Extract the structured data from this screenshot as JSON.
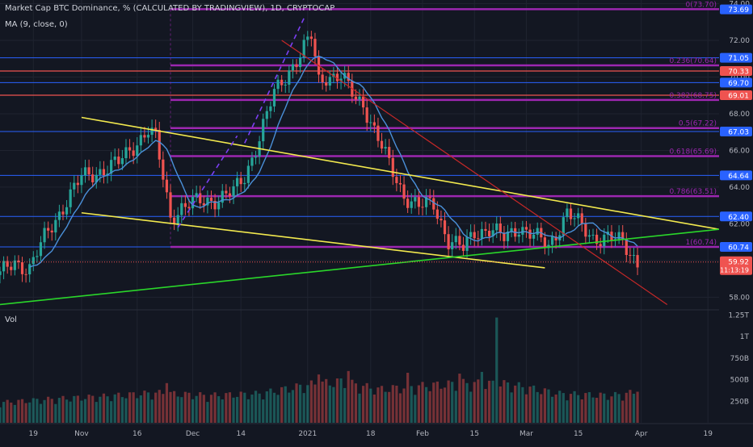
{
  "legend": {
    "title": "Market Cap BTC Dominance, % (CALCULATED BY TRADINGVIEW), 1D, CRYPTOCAP",
    "ma": "MA (9, close, 0)",
    "vol": "Vol"
  },
  "colors": {
    "background": "#131722",
    "grid": "#1f2330",
    "up": "#26a69a",
    "down": "#ef5350",
    "ma": "#4a90d9",
    "fib": "#9c27b0",
    "fib_text": "#9c27b0",
    "yellow": "#f2e94e",
    "green": "#2ad62a",
    "red_trend": "#c62828",
    "blue_level": "#2962ff",
    "price_label": "#ef5350"
  },
  "chart_data": {
    "type": "candlestick",
    "x_axis": {
      "start_date": "2020-10-10",
      "end_date": "2021-04-22",
      "ticks": [
        {
          "date": "2020-10-19",
          "label": "19"
        },
        {
          "date": "2020-11-01",
          "label": "Nov"
        },
        {
          "date": "2020-11-16",
          "label": "16"
        },
        {
          "date": "2020-12-01",
          "label": "Dec"
        },
        {
          "date": "2020-12-14",
          "label": "14"
        },
        {
          "date": "2021-01-01",
          "label": "2021"
        },
        {
          "date": "2021-01-18",
          "label": "18"
        },
        {
          "date": "2021-02-01",
          "label": "Feb"
        },
        {
          "date": "2021-02-15",
          "label": "15"
        },
        {
          "date": "2021-03-01",
          "label": "Mar"
        },
        {
          "date": "2021-03-15",
          "label": "15"
        },
        {
          "date": "2021-04-01",
          "label": "Apr"
        },
        {
          "date": "2021-04-19",
          "label": "19"
        }
      ]
    },
    "y_axis": {
      "range": [
        57.4,
        74.2
      ],
      "ticks": [
        "58.00",
        "60.00",
        "62.00",
        "64.00",
        "66.00",
        "68.00",
        "70.00",
        "72.00",
        "74.00"
      ]
    },
    "volume_axis": {
      "range": [
        0,
        1300000000
      ],
      "ticks": [
        {
          "label": "250B",
          "value": 250000000
        },
        {
          "label": "500B",
          "value": 500000000
        },
        {
          "label": "750B",
          "value": 750000000
        },
        {
          "label": "1T",
          "value": 1000000000
        },
        {
          "label": "1.25T",
          "value": 1250000000
        }
      ]
    },
    "price_anchors": [
      [
        "2020-10-10",
        59.2
      ],
      [
        "2020-10-14",
        59.9
      ],
      [
        "2020-10-18",
        59.6
      ],
      [
        "2020-10-22",
        61.2
      ],
      [
        "2020-10-28",
        63.3
      ],
      [
        "2020-11-01",
        64.5
      ],
      [
        "2020-11-06",
        64.9
      ],
      [
        "2020-11-11",
        65.3
      ],
      [
        "2020-11-16",
        66.5
      ],
      [
        "2020-11-19",
        67.1
      ],
      [
        "2020-11-21",
        66.6
      ],
      [
        "2020-11-25",
        62.4
      ],
      [
        "2020-11-28",
        62.9
      ],
      [
        "2020-12-03",
        63.2
      ],
      [
        "2020-12-08",
        63.4
      ],
      [
        "2020-12-12",
        63.7
      ],
      [
        "2020-12-15",
        64.6
      ],
      [
        "2020-12-19",
        66.7
      ],
      [
        "2020-12-23",
        69.1
      ],
      [
        "2020-12-27",
        70.4
      ],
      [
        "2020-12-30",
        71.2
      ],
      [
        "2021-01-02",
        72.2
      ],
      [
        "2021-01-04",
        69.8
      ],
      [
        "2021-01-06",
        70.1
      ],
      [
        "2021-01-10",
        70.0
      ],
      [
        "2021-01-14",
        68.8
      ],
      [
        "2021-01-16",
        68.6
      ],
      [
        "2021-01-19",
        67.1
      ],
      [
        "2021-01-23",
        65.2
      ],
      [
        "2021-01-27",
        63.6
      ],
      [
        "2021-01-31",
        62.9
      ],
      [
        "2021-02-04",
        63.1
      ],
      [
        "2021-02-08",
        61.1
      ],
      [
        "2021-02-12",
        60.6
      ],
      [
        "2021-02-15",
        61.6
      ],
      [
        "2021-02-19",
        61.7
      ],
      [
        "2021-02-23",
        61.2
      ],
      [
        "2021-02-27",
        61.9
      ],
      [
        "2021-03-03",
        61.3
      ],
      [
        "2021-03-07",
        60.8
      ],
      [
        "2021-03-12",
        62.6
      ],
      [
        "2021-03-15",
        62.0
      ],
      [
        "2021-03-19",
        61.3
      ],
      [
        "2021-03-23",
        61.2
      ],
      [
        "2021-03-27",
        61.0
      ],
      [
        "2021-03-29",
        60.5
      ],
      [
        "2021-03-31",
        59.9
      ]
    ],
    "vol_anchors": [
      [
        "2020-10-10",
        230000000
      ],
      [
        "2020-10-24",
        270000000
      ],
      [
        "2020-11-07",
        300000000
      ],
      [
        "2020-11-21",
        340000000
      ],
      [
        "2020-12-05",
        310000000
      ],
      [
        "2020-12-19",
        330000000
      ],
      [
        "2021-01-01",
        430000000
      ],
      [
        "2021-01-10",
        470000000
      ],
      [
        "2021-01-20",
        380000000
      ],
      [
        "2021-02-01",
        420000000
      ],
      [
        "2021-02-12",
        450000000
      ],
      [
        "2021-02-24",
        440000000
      ],
      [
        "2021-03-10",
        330000000
      ],
      [
        "2021-03-24",
        310000000
      ],
      [
        "2021-03-31",
        350000000
      ]
    ],
    "vol_spikes": [
      {
        "date": "2021-02-21",
        "value": 1220000000
      },
      {
        "date": "2021-02-17",
        "value": 590000000
      },
      {
        "date": "2021-01-12",
        "value": 600000000
      },
      {
        "date": "2021-01-04",
        "value": 560000000
      },
      {
        "date": "2021-01-28",
        "value": 580000000
      },
      {
        "date": "2021-02-11",
        "value": 570000000
      },
      {
        "date": "2020-11-24",
        "value": 460000000
      },
      {
        "date": "2021-03-31",
        "value": 360000000
      }
    ],
    "fib_levels": [
      {
        "value": 73.7,
        "label": "0(73.70)"
      },
      {
        "value": 70.64,
        "label": "0.236(70.64)"
      },
      {
        "value": 68.75,
        "label": "0.382(68.75)"
      },
      {
        "value": 67.22,
        "label": "0.5(67.22)"
      },
      {
        "value": 65.69,
        "label": "0.618(65.69)"
      },
      {
        "value": 63.51,
        "label": "0.786(63.51)"
      },
      {
        "value": 60.74,
        "label": "1(60.74)"
      }
    ],
    "fib_start_date": "2020-11-25",
    "blue_levels": [
      71.05,
      69.7,
      67.03,
      64.64,
      62.4,
      60.74
    ],
    "red_levels": [
      70.33,
      69.01
    ],
    "price_labels": [
      {
        "value": 73.69,
        "text": "73.69",
        "kind": "blue"
      },
      {
        "value": 71.05,
        "text": "71.05",
        "kind": "blue"
      },
      {
        "value": 70.33,
        "text": "70.33",
        "kind": "red"
      },
      {
        "value": 69.7,
        "text": "69.70",
        "kind": "blue"
      },
      {
        "value": 69.01,
        "text": "69.01",
        "kind": "red"
      },
      {
        "value": 67.03,
        "text": "67.03",
        "kind": "blue"
      },
      {
        "value": 64.64,
        "text": "64.64",
        "kind": "blue"
      },
      {
        "value": 62.4,
        "text": "62.40",
        "kind": "blue"
      },
      {
        "value": 60.74,
        "text": "60.74",
        "kind": "blue"
      }
    ],
    "current_price": {
      "value": 59.92,
      "text": "59.92",
      "countdown": "11:13:19"
    },
    "trendlines": [
      {
        "kind": "yellow",
        "from": [
          "2020-11-01",
          67.8
        ],
        "to": [
          "2021-04-22",
          61.7
        ]
      },
      {
        "kind": "yellow",
        "from": [
          "2020-11-01",
          62.6
        ],
        "to": [
          "2021-03-06",
          59.6
        ]
      },
      {
        "kind": "green",
        "from": [
          "2020-10-10",
          57.6
        ],
        "to": [
          "2021-04-22",
          61.7
        ]
      },
      {
        "kind": "red_trend",
        "from": [
          "2020-12-25",
          72.0
        ],
        "to": [
          "2021-04-08",
          57.6
        ]
      }
    ],
    "dashed_lines": [
      {
        "from": [
          "2020-11-27",
          61.8
        ],
        "to": [
          "2020-12-13",
          66.8
        ]
      },
      {
        "from": [
          "2020-12-15",
          66.4
        ],
        "to": [
          "2020-12-31",
          73.2
        ]
      }
    ]
  }
}
